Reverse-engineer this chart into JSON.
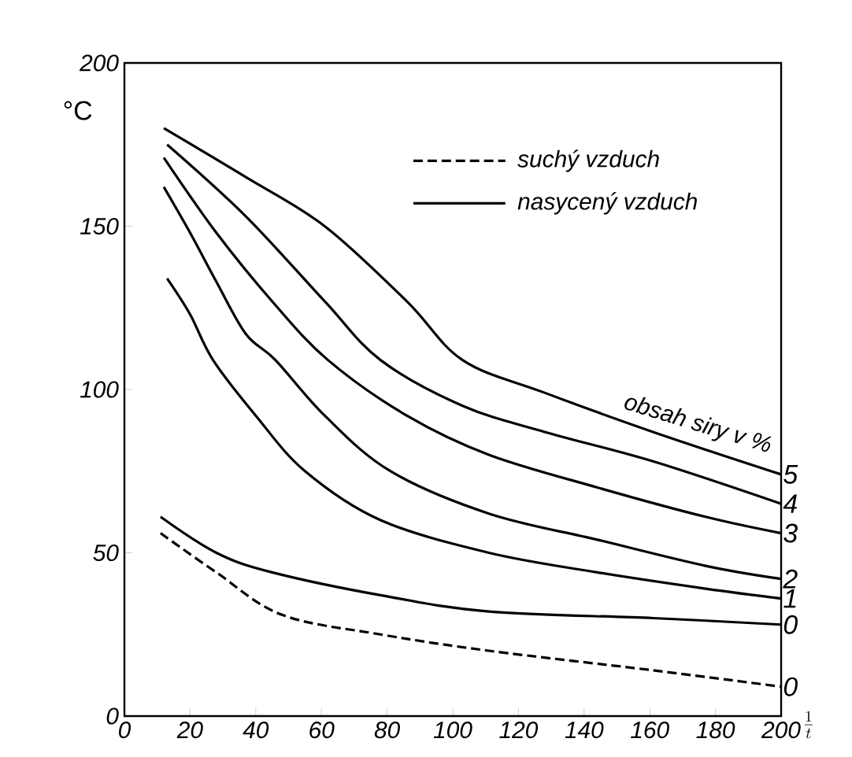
{
  "chart_data": {
    "type": "line",
    "ylabel": "°C",
    "xlabel": "\\frac{1}{t}",
    "xlim": [
      0,
      200
    ],
    "xticks": [
      0,
      20,
      40,
      60,
      80,
      100,
      120,
      140,
      160,
      180,
      200
    ],
    "ylim": [
      0,
      200
    ],
    "yticks": [
      0,
      50,
      100,
      150,
      200
    ],
    "series": [
      {
        "name": "0",
        "color": "#000000",
        "line_style": "dashed",
        "x": [
          11,
          28,
          48,
          78,
          111,
          161,
          200
        ],
        "values": [
          56,
          44,
          31,
          25,
          20,
          14,
          9
        ]
      },
      {
        "name": "0",
        "color": "#000000",
        "line_style": "solid",
        "x": [
          11,
          28,
          45,
          78,
          111,
          161,
          200
        ],
        "values": [
          61,
          50,
          44,
          37,
          32,
          30,
          28
        ]
      },
      {
        "name": "1",
        "color": "#000000",
        "line_style": "solid",
        "x": [
          13,
          20,
          27,
          40,
          55,
          78,
          111,
          144,
          177,
          200
        ],
        "values": [
          134,
          123,
          109,
          92,
          75,
          60,
          50,
          44,
          39,
          36
        ]
      },
      {
        "name": "2",
        "color": "#000000",
        "line_style": "solid",
        "x": [
          12,
          20,
          28,
          37,
          46,
          61,
          81,
          111,
          144,
          177,
          200
        ],
        "values": [
          162,
          148,
          133,
          117,
          109,
          92,
          75,
          62,
          54,
          46,
          42
        ]
      },
      {
        "name": "3",
        "color": "#000000",
        "line_style": "solid",
        "x": [
          12,
          28,
          45,
          62,
          86,
          111,
          144,
          177,
          200
        ],
        "values": [
          171,
          148,
          127,
          109,
          92,
          80,
          70,
          61,
          56
        ]
      },
      {
        "name": "4",
        "color": "#000000",
        "line_style": "solid",
        "x": [
          13,
          37,
          61,
          78,
          103,
          128,
          161,
          200
        ],
        "values": [
          175,
          153,
          127,
          109,
          95,
          87,
          78,
          65
        ]
      },
      {
        "name": "5",
        "color": "#000000",
        "line_style": "solid",
        "x": [
          12,
          37,
          61,
          86,
          103,
          128,
          161,
          200
        ],
        "values": [
          180,
          165,
          150,
          127,
          109,
          99,
          87,
          74
        ]
      }
    ],
    "annotations": [
      "suchý vzduch",
      "nasycený vzduch",
      "obsah siry v %"
    ]
  }
}
